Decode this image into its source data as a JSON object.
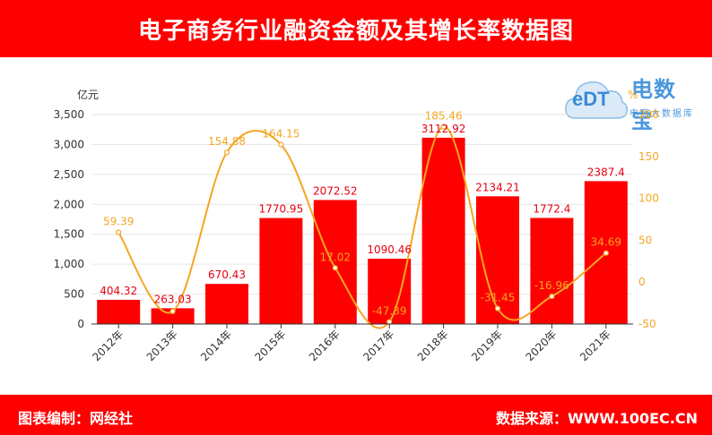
{
  "header": {
    "title": "电子商务行业融资金额及其增长率数据图"
  },
  "footer": {
    "left": "图表编制：网经社",
    "right": "数据来源：WWW.100EC.CN"
  },
  "logo": {
    "main": "电数宝",
    "sub": "电商大数据库",
    "mark": "eDT"
  },
  "colors": {
    "bar": "#ff0000",
    "line": "#f5a623",
    "header": "#ff0000"
  },
  "chart_data": {
    "type": "bar",
    "categories": [
      "2012年",
      "2013年",
      "2014年",
      "2015年",
      "2016年",
      "2017年",
      "2018年",
      "2019年",
      "2020年",
      "2021年"
    ],
    "series": [
      {
        "type": "bar",
        "axis": "left",
        "values": [
          404.32,
          263.03,
          670.43,
          1770.95,
          2072.52,
          1090.46,
          3112.92,
          2134.21,
          1772.4,
          2387.4
        ],
        "labels": [
          "404.32",
          "263.03",
          "670.43",
          "1770.95",
          "2072.52",
          "1090.46",
          "3112.92",
          "2134.21",
          "1772.4",
          "2387.4"
        ]
      },
      {
        "type": "line",
        "axis": "right",
        "smooth": true,
        "values": [
          59.39,
          -34.94,
          154.88,
          164.15,
          17.02,
          -47.39,
          185.46,
          -31.45,
          -16.96,
          34.69
        ],
        "labels": [
          "59.39",
          "",
          "154.88",
          "164.15",
          "17.02",
          "-47.39",
          "185.46",
          "-31.45",
          "-16.96",
          "34.69"
        ]
      }
    ],
    "ylabel": "亿元",
    "ylabel_right": "%",
    "ylim": [
      0,
      3500
    ],
    "yticks": [
      "0",
      "500",
      "1,000",
      "1,500",
      "2,000",
      "2,500",
      "3,000",
      "3,500"
    ],
    "ylim_right": [
      -50,
      200
    ],
    "yticks_right": [
      "-50",
      "0",
      "50",
      "100",
      "150",
      "200"
    ],
    "grid": true
  }
}
